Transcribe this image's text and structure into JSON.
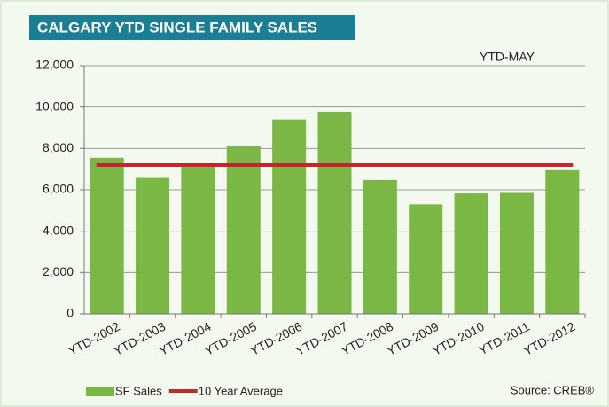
{
  "chart_data": {
    "type": "bar",
    "title": "CALGARY YTD SINGLE FAMILY SALES",
    "annotation": "YTD-MAY",
    "source": "Source: CREB®",
    "categories": [
      "YTD-2002",
      "YTD-2003",
      "YTD-2004",
      "YTD-2005",
      "YTD-2006",
      "YTD-2007",
      "YTD-2008",
      "YTD-2009",
      "YTD-2010",
      "YTD-2011",
      "YTD-2012"
    ],
    "series": [
      {
        "name": "SF Sales",
        "type": "bar",
        "color": "#7ab744",
        "values": [
          7550,
          6575,
          7250,
          8100,
          9400,
          9775,
          6475,
          5300,
          5825,
          5850,
          6950
        ]
      },
      {
        "name": "10 Year Average",
        "type": "line",
        "color": "#c1272d",
        "values": [
          7200,
          7200,
          7200,
          7200,
          7200,
          7200,
          7200,
          7200,
          7200,
          7200,
          7200
        ]
      }
    ],
    "ylim": [
      0,
      12000
    ],
    "yticks": [
      0,
      {
        "value": 2000,
        "label": "2,000"
      },
      {
        "value": 4000,
        "label": "4,000"
      },
      {
        "value": 6000,
        "label": "6,000"
      },
      {
        "value": 8000,
        "label": "8,000"
      },
      {
        "value": 10000,
        "label": "10,000"
      },
      {
        "value": 12000,
        "label": "12,000"
      }
    ],
    "grid": true,
    "legend": "bottom-left"
  }
}
